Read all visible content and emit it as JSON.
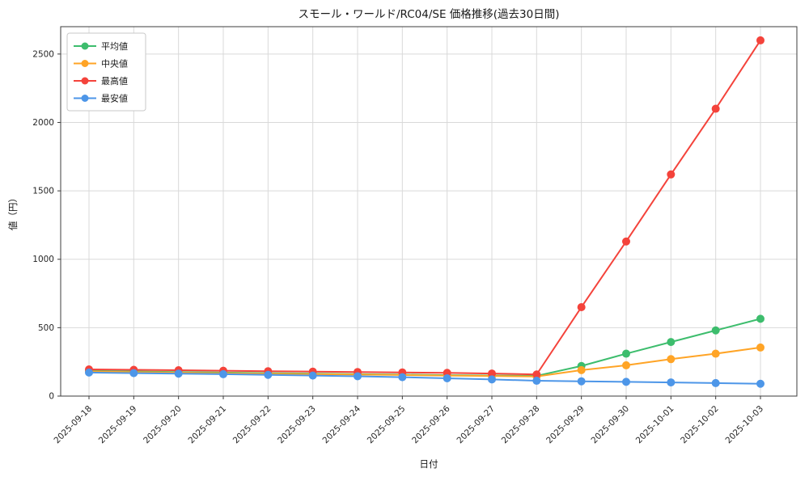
{
  "chart_data": {
    "type": "line",
    "title": "スモール・ワールド/RC04/SE 価格推移(過去30日間)",
    "xlabel": "日付",
    "ylabel": "値（円）",
    "x": [
      "2025-09-18",
      "2025-09-19",
      "2025-09-20",
      "2025-09-21",
      "2025-09-22",
      "2025-09-23",
      "2025-09-24",
      "2025-09-25",
      "2025-09-26",
      "2025-09-27",
      "2025-09-28",
      "2025-09-29",
      "2025-09-30",
      "2025-10-01",
      "2025-10-02",
      "2025-10-03"
    ],
    "series": [
      {
        "name": "平均値",
        "color": "#3dbd6d",
        "values": [
          185,
          180,
          176,
          172,
          168,
          164,
          160,
          157,
          153,
          150,
          148,
          220,
          310,
          395,
          480,
          565
        ]
      },
      {
        "name": "中央値",
        "color": "#ffa426",
        "values": [
          180,
          175,
          171,
          167,
          163,
          160,
          157,
          154,
          150,
          147,
          143,
          190,
          225,
          270,
          310,
          355
        ]
      },
      {
        "name": "最高値",
        "color": "#f4433b",
        "values": [
          195,
          192,
          189,
          185,
          182,
          179,
          176,
          173,
          170,
          165,
          158,
          650,
          1130,
          1620,
          2100,
          2600
        ]
      },
      {
        "name": "最安値",
        "color": "#4d96e8",
        "values": [
          172,
          168,
          164,
          160,
          155,
          150,
          145,
          138,
          130,
          122,
          112,
          108,
          104,
          100,
          95,
          90
        ]
      }
    ],
    "ylim": [
      0,
      2700
    ],
    "yticks": [
      0,
      500,
      1000,
      1500,
      2000,
      2500
    ],
    "grid": true,
    "legend_position": "top-left",
    "colors": {
      "grid": "#d9d9d9",
      "spine": "#3c3c3c",
      "background": "#ffffff"
    }
  }
}
